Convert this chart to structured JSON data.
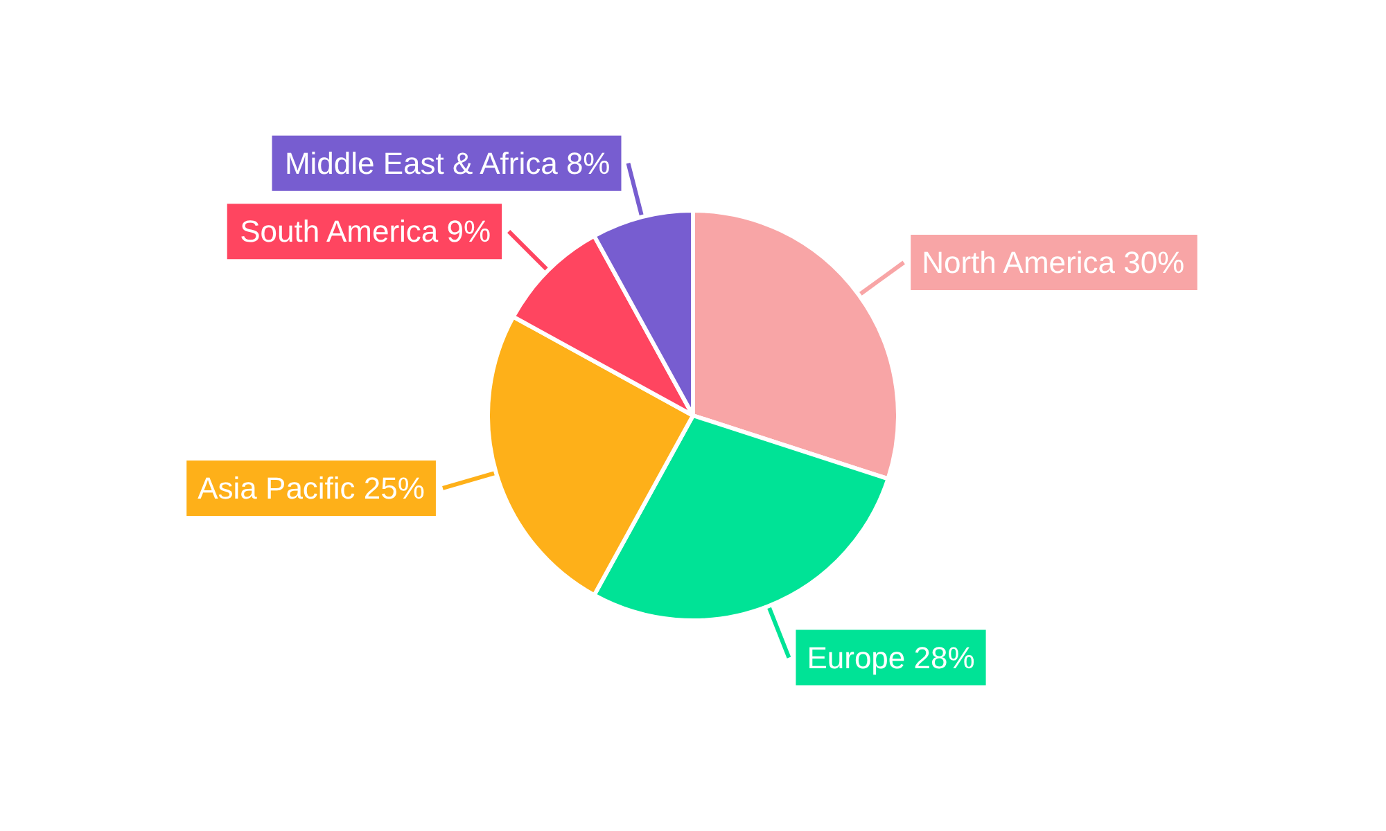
{
  "chart_data": {
    "type": "pie",
    "categories": [
      "North America",
      "Europe",
      "Asia Pacific",
      "South America",
      "Middle East & Africa"
    ],
    "values": [
      30,
      28,
      25,
      9,
      8
    ],
    "value_labels": [
      "30%",
      "28%",
      "25%",
      "9%",
      "8%"
    ],
    "colors": [
      "#f8a5a6",
      "#00e396",
      "#feb019",
      "#ff4560",
      "#775dd0"
    ],
    "legend": false
  }
}
